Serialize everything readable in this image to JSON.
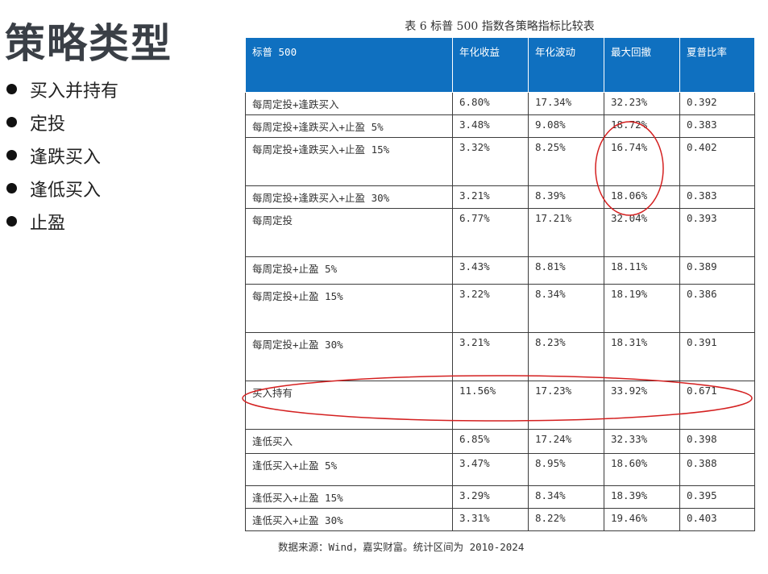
{
  "slide": {
    "title": "策略类型",
    "bullets": [
      "买入并持有",
      "定投",
      "逢跌买入",
      "逢低买入",
      "止盈"
    ]
  },
  "table": {
    "caption": "表 6 标普 500 指数各策略指标比较表",
    "columns": [
      "标普 500",
      "年化收益",
      "年化波动",
      "最大回撤",
      "夏普比率"
    ],
    "rows": [
      [
        "每周定投+逢跌买入",
        "6.80%",
        "17.34%",
        "32.23%",
        "0.392"
      ],
      [
        "每周定投+逢跌买入+止盈 5%",
        "3.48%",
        "9.08%",
        "18.72%",
        "0.383"
      ],
      [
        "每周定投+逢跌买入+止盈 15%",
        "3.32%",
        "8.25%",
        "16.74%",
        "0.402"
      ],
      [
        "每周定投+逢跌买入+止盈 30%",
        "3.21%",
        "8.39%",
        "18.06%",
        "0.383"
      ],
      [
        "每周定投",
        "6.77%",
        "17.21%",
        "32.04%",
        "0.393"
      ],
      [
        "每周定投+止盈 5%",
        "3.43%",
        "8.81%",
        "18.11%",
        "0.389"
      ],
      [
        "每周定投+止盈 15%",
        "3.22%",
        "8.34%",
        "18.19%",
        "0.386"
      ],
      [
        "每周定投+止盈 30%",
        "3.21%",
        "8.23%",
        "18.31%",
        "0.391"
      ],
      [
        "买入持有",
        "11.56%",
        "17.23%",
        "33.92%",
        "0.671"
      ],
      [
        "逢低买入",
        "6.85%",
        "17.24%",
        "32.33%",
        "0.398"
      ],
      [
        "逢低买入+止盈 5%",
        "3.47%",
        "8.95%",
        "18.60%",
        "0.388"
      ],
      [
        "逢低买入+止盈 15%",
        "3.29%",
        "8.34%",
        "18.39%",
        "0.395"
      ],
      [
        "逢低买入+止盈 30%",
        "3.31%",
        "8.22%",
        "19.46%",
        "0.403"
      ]
    ],
    "source": "数据来源：Wind，嘉实财富。统计区间为 2010-2024"
  },
  "annotations": {
    "color": "#d42020"
  }
}
